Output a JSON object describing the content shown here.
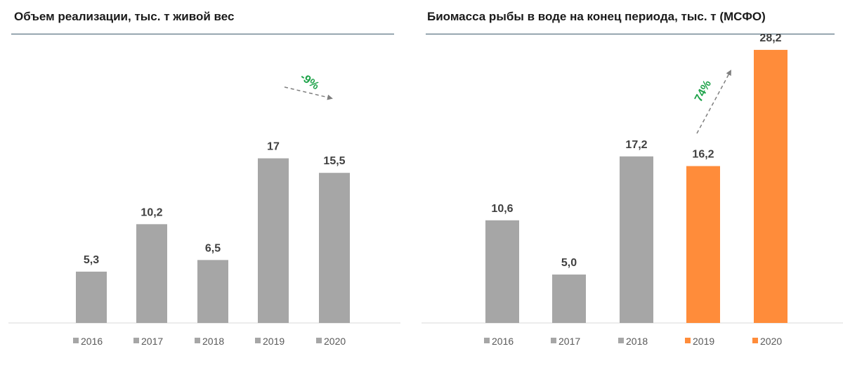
{
  "colors": {
    "gray": "#a6a6a6",
    "orange": "#ff8c3a",
    "title_rule": "#3d5a6c",
    "annotation": "#1fa34a",
    "label": "#404040",
    "axis": "#d9d9d9",
    "arrow": "#7f7f7f"
  },
  "chart_data": [
    {
      "type": "bar",
      "title": "Объем реализации, тыс. т живой вес",
      "categories": [
        "2016",
        "2017",
        "2018",
        "2019",
        "2020"
      ],
      "values": [
        5.3,
        10.2,
        6.5,
        17,
        15.5
      ],
      "value_labels": [
        "5,3",
        "10,2",
        "6,5",
        "17",
        "15,5"
      ],
      "bar_colors": [
        "gray",
        "gray",
        "gray",
        "gray",
        "gray"
      ],
      "ylim": [
        0,
        29
      ],
      "annotation": {
        "text": "-9%",
        "from_index": 3,
        "to_index": 4,
        "color": "annotation"
      },
      "legend_position": "bottom",
      "grid": false
    },
    {
      "type": "bar",
      "title": "Биомасса рыбы в воде на конец периода, тыс. т (МСФО)",
      "categories": [
        "2016",
        "2017",
        "2018",
        "2019",
        "2020"
      ],
      "values": [
        10.6,
        5.0,
        17.2,
        16.2,
        28.2
      ],
      "value_labels": [
        "10,6",
        "5,0",
        "17,2",
        "16,2",
        "28,2"
      ],
      "bar_colors": [
        "gray",
        "gray",
        "gray",
        "orange",
        "orange"
      ],
      "ylim": [
        0,
        29
      ],
      "annotation": {
        "text": "74%",
        "from_index": 3,
        "to_index": 4,
        "color": "annotation"
      },
      "legend_position": "bottom",
      "grid": false
    }
  ]
}
